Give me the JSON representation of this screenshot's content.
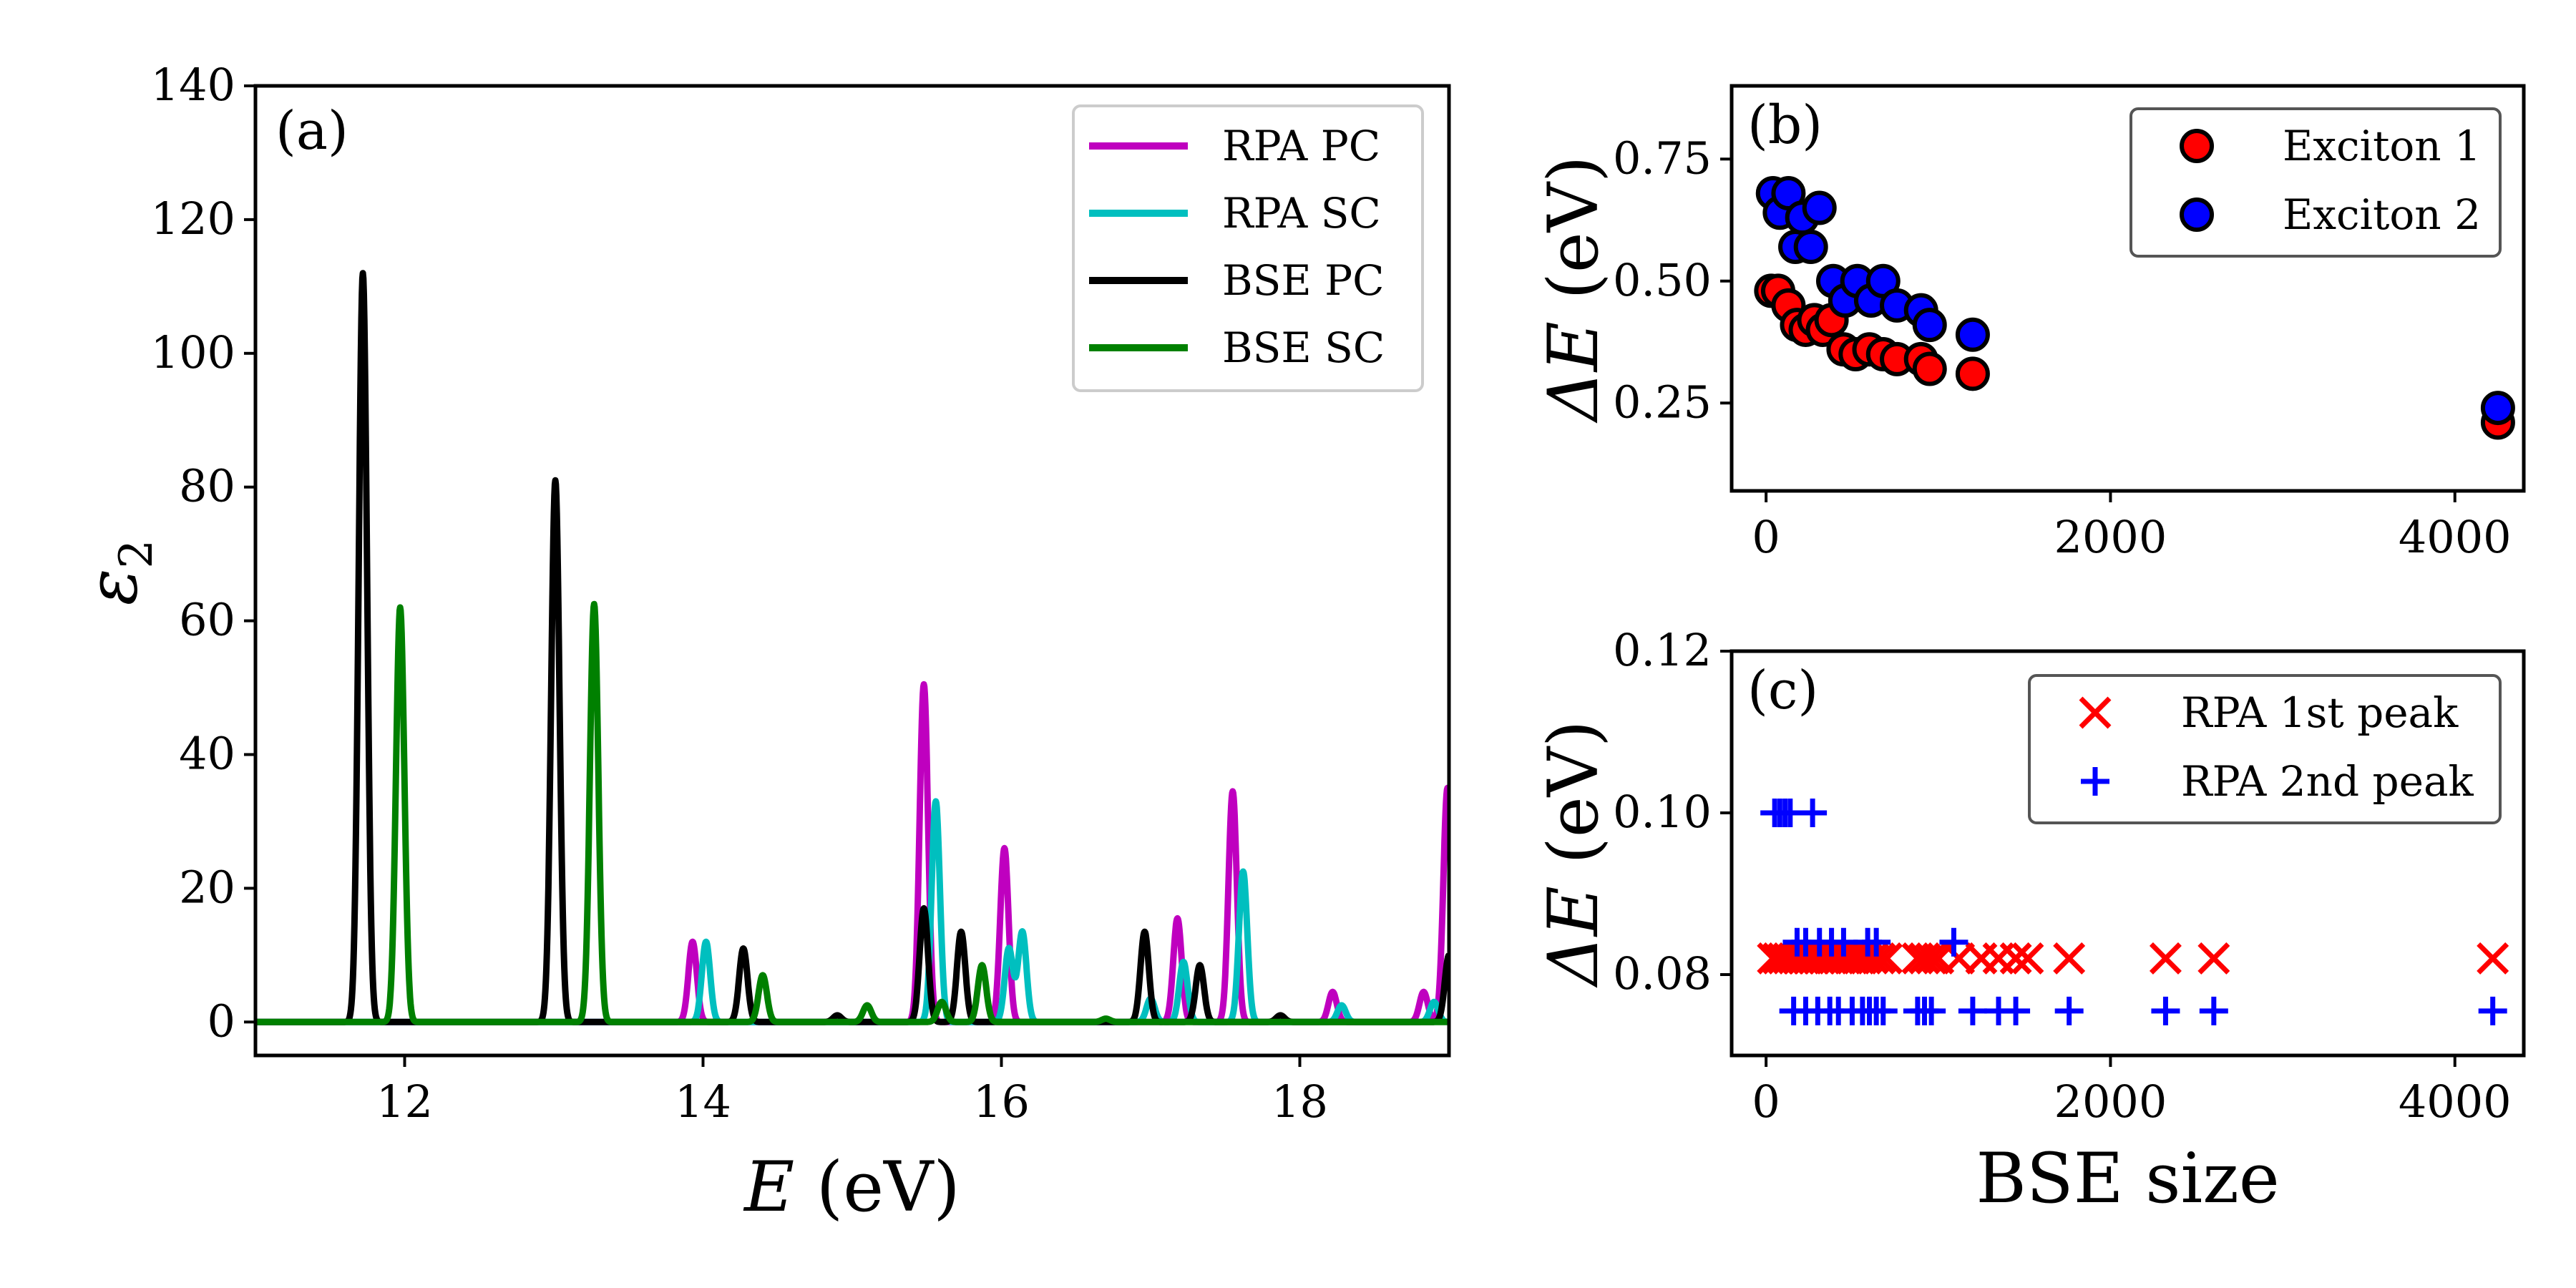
{
  "chart_data": [
    {
      "panel": "(a)",
      "type": "line",
      "xlabel_sym": "E",
      "xlabel_unit": "(eV)",
      "ylabel_sym": "ε",
      "ylabel_sub": "2",
      "xlim": [
        11.0,
        19.0
      ],
      "ylim": [
        -5,
        140
      ],
      "xticks": [
        12,
        14,
        16,
        18
      ],
      "yticks": [
        0,
        20,
        40,
        60,
        80,
        100,
        120,
        140
      ],
      "legend_position": "top-right",
      "series": [
        {
          "name": "RPA PC",
          "color": "#bf00bf",
          "peaks": [
            [
              13.93,
              12.0
            ],
            [
              15.48,
              50.5
            ],
            [
              16.02,
              26.0
            ],
            [
              17.18,
              15.5
            ],
            [
              17.55,
              34.5
            ],
            [
              18.22,
              4.5
            ],
            [
              18.83,
              4.5
            ],
            [
              18.99,
              35.0
            ]
          ]
        },
        {
          "name": "RPA SC",
          "color": "#00bfbf",
          "peaks": [
            [
              14.02,
              12.0
            ],
            [
              15.56,
              33.0
            ],
            [
              16.05,
              11.0
            ],
            [
              16.14,
              13.5
            ],
            [
              17.0,
              3.5
            ],
            [
              17.22,
              9.0
            ],
            [
              17.62,
              22.5
            ],
            [
              18.28,
              2.5
            ],
            [
              18.9,
              3.0
            ]
          ]
        },
        {
          "name": "BSE PC",
          "color": "#000000",
          "peaks": [
            [
              11.72,
              112.0
            ],
            [
              13.01,
              81.0
            ],
            [
              14.27,
              11.0
            ],
            [
              14.9,
              1.0
            ],
            [
              15.48,
              17.0
            ],
            [
              15.73,
              13.5
            ],
            [
              16.96,
              13.5
            ],
            [
              17.33,
              8.5
            ],
            [
              17.87,
              1.0
            ],
            [
              19.0,
              10.0
            ]
          ]
        },
        {
          "name": "BSE SC",
          "color": "#008000",
          "peaks": [
            [
              11.97,
              62.0
            ],
            [
              13.27,
              62.5
            ],
            [
              14.4,
              7.0
            ],
            [
              15.1,
              2.5
            ],
            [
              15.6,
              3.0
            ],
            [
              15.87,
              8.5
            ],
            [
              16.7,
              0.5
            ]
          ]
        }
      ]
    },
    {
      "panel": "(b)",
      "type": "scatter",
      "ylabel_sym": "ΔE",
      "ylabel_unit": "(eV)",
      "xlim": [
        -200,
        4400
      ],
      "ylim": [
        0.07,
        0.9
      ],
      "xticks": [
        0,
        2000,
        4000
      ],
      "yticks": [
        0.25,
        0.5,
        0.75
      ],
      "ytick_labels": [
        "0.25",
        "0.50",
        "0.75"
      ],
      "legend_position": "top-right",
      "series": [
        {
          "name": "Exciton 1",
          "color": "#ff0000",
          "marker": "circle",
          "x": [
            30,
            70,
            130,
            180,
            230,
            280,
            330,
            380,
            450,
            520,
            600,
            680,
            760,
            900,
            950,
            1200,
            4250
          ],
          "y": [
            0.48,
            0.48,
            0.45,
            0.41,
            0.4,
            0.42,
            0.4,
            0.42,
            0.36,
            0.35,
            0.36,
            0.35,
            0.34,
            0.34,
            0.32,
            0.31,
            0.21
          ]
        },
        {
          "name": "Exciton 2",
          "color": "#0000ff",
          "marker": "circle",
          "x": [
            40,
            80,
            130,
            170,
            210,
            260,
            310,
            390,
            460,
            530,
            610,
            680,
            760,
            900,
            950,
            1200,
            4250
          ],
          "y": [
            0.68,
            0.64,
            0.68,
            0.57,
            0.63,
            0.57,
            0.65,
            0.5,
            0.46,
            0.5,
            0.46,
            0.5,
            0.45,
            0.44,
            0.41,
            0.39,
            0.24
          ]
        }
      ]
    },
    {
      "panel": "(c)",
      "type": "scatter",
      "ylabel_sym": "ΔE",
      "ylabel_unit": "(eV)",
      "xlabel": "BSE size",
      "xlim": [
        -200,
        4400
      ],
      "ylim": [
        0.07,
        0.12
      ],
      "xticks": [
        0,
        2000,
        4000
      ],
      "yticks": [
        0.08,
        0.1,
        0.12
      ],
      "ytick_labels": [
        "0.08",
        "0.10",
        "0.12"
      ],
      "legend_position": "top-right",
      "series": [
        {
          "name": "RPA 1st peak",
          "color": "#ff0000",
          "marker": "x",
          "x": [
            40,
            70,
            100,
            130,
            160,
            190,
            220,
            250,
            280,
            310,
            340,
            380,
            420,
            460,
            500,
            540,
            580,
            620,
            660,
            700,
            880,
            920,
            960,
            1000,
            1120,
            1250,
            1350,
            1450,
            1520,
            1760,
            2320,
            2600,
            4220
          ],
          "y": [
            0.082,
            0.082,
            0.082,
            0.082,
            0.082,
            0.082,
            0.082,
            0.082,
            0.082,
            0.082,
            0.082,
            0.082,
            0.082,
            0.082,
            0.082,
            0.082,
            0.082,
            0.082,
            0.082,
            0.082,
            0.082,
            0.082,
            0.082,
            0.082,
            0.082,
            0.082,
            0.082,
            0.082,
            0.082,
            0.082,
            0.082,
            0.082,
            0.082
          ]
        },
        {
          "name": "RPA 2nd peak",
          "color": "#0000ff",
          "marker": "+",
          "x": [
            50,
            80,
            110,
            140,
            270,
            180,
            230,
            310,
            380,
            450,
            590,
            640,
            1090,
            160,
            230,
            300,
            370,
            420,
            500,
            560,
            600,
            640,
            680,
            880,
            920,
            960,
            1200,
            1350,
            1450,
            1760,
            2320,
            2600,
            4220
          ],
          "y": [
            0.1,
            0.1,
            0.1,
            0.1,
            0.1,
            0.084,
            0.084,
            0.084,
            0.084,
            0.084,
            0.084,
            0.084,
            0.084,
            0.0755,
            0.0755,
            0.0755,
            0.0755,
            0.0755,
            0.0755,
            0.0755,
            0.0755,
            0.0755,
            0.0755,
            0.0755,
            0.0755,
            0.0755,
            0.0755,
            0.0755,
            0.0755,
            0.0755,
            0.0755,
            0.0755,
            0.0755
          ]
        }
      ]
    }
  ]
}
